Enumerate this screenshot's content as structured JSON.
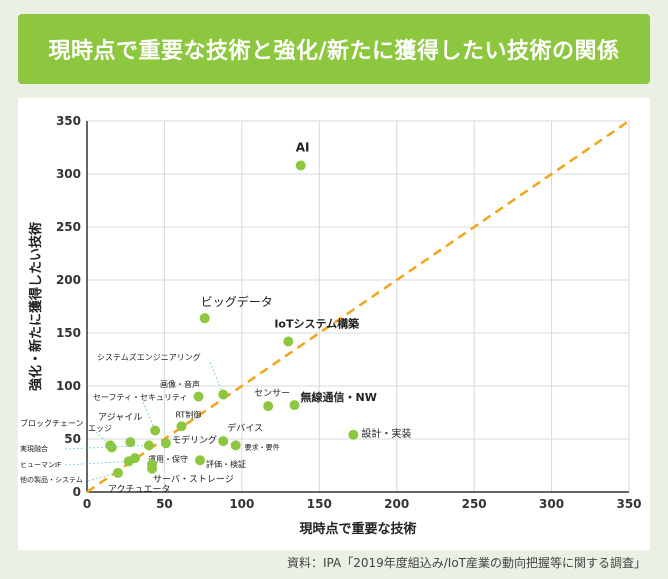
{
  "title": "現時点で重要な技術と強化/新たに獲得したい技術の関係",
  "source": "資料：IPA「2019年度組込み/IoT産業の動向把握等に関する調査」",
  "chart_data": {
    "type": "scatter",
    "xlabel": "現時点で重要な技術",
    "ylabel": "強化・新たに獲得したい技術",
    "xlim": [
      0,
      350
    ],
    "ylim": [
      0,
      350
    ],
    "xticks": [
      0,
      50,
      100,
      150,
      200,
      250,
      300,
      350
    ],
    "yticks": [
      0,
      50,
      100,
      150,
      200,
      250,
      300,
      350
    ],
    "grid": true,
    "diagonal": true,
    "colors": {
      "point": "#8dc63f",
      "diagonal": "#f5a31a",
      "title_bg": "#8dc63f"
    },
    "points": [
      {
        "label": "AI",
        "x": 138,
        "y": 308
      },
      {
        "label": "ビッグデータ",
        "x": 76,
        "y": 164
      },
      {
        "label": "IoTシステム構築",
        "x": 130,
        "y": 142
      },
      {
        "label": "システムズエンジニアリング",
        "x": 88,
        "y": 92
      },
      {
        "label": "画像・音声",
        "x": 72,
        "y": 90
      },
      {
        "label": "セーフティ・セキュリティ",
        "x": 44,
        "y": 58
      },
      {
        "label": "センサー",
        "x": 117,
        "y": 81
      },
      {
        "label": "無線通信・NW",
        "x": 134,
        "y": 82
      },
      {
        "label": "RT制御",
        "x": 61,
        "y": 62
      },
      {
        "label": "設計・実装",
        "x": 172,
        "y": 54
      },
      {
        "label": "アジャイル",
        "x": 28,
        "y": 47
      },
      {
        "label": "ブロックチェーン",
        "x": 15,
        "y": 44
      },
      {
        "label": "エッジ",
        "x": 16,
        "y": 42
      },
      {
        "label": "デバイス",
        "x": 88,
        "y": 48
      },
      {
        "label": "モデリング",
        "x": 51,
        "y": 46
      },
      {
        "label": "要求・要件",
        "x": 96,
        "y": 44
      },
      {
        "label": "実現融合",
        "x": 40,
        "y": 44
      },
      {
        "label": "運用・保守",
        "x": 31,
        "y": 32
      },
      {
        "label": "ヒューマンIF",
        "x": 27,
        "y": 29
      },
      {
        "label": "評価・検証",
        "x": 73,
        "y": 30
      },
      {
        "label": "サーバ・ストレージ",
        "x": 42,
        "y": 26
      },
      {
        "label": "他の製品・システム",
        "x": 20,
        "y": 18
      },
      {
        "label": "アクチュエータ",
        "x": 42,
        "y": 22
      }
    ]
  }
}
